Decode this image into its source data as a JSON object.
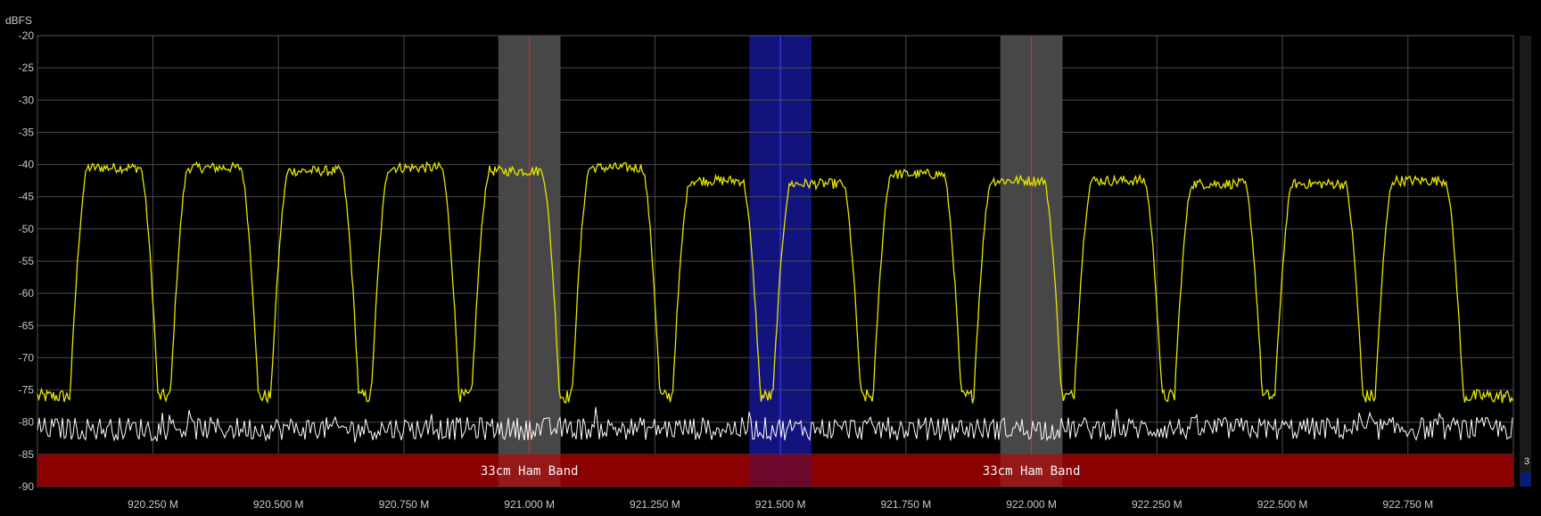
{
  "chart_data": {
    "type": "line",
    "y_unit": "dBFS",
    "ylim": [
      -90,
      -20
    ],
    "xlim": [
      920.02,
      922.96
    ],
    "y_ticks": [
      -20,
      -25,
      -30,
      -35,
      -40,
      -45,
      -50,
      -55,
      -60,
      -65,
      -70,
      -75,
      -80,
      -85,
      -90
    ],
    "x_ticks": [
      {
        "value": 920.25,
        "label": "920.250 M"
      },
      {
        "value": 920.5,
        "label": "920.500 M"
      },
      {
        "value": 920.75,
        "label": "920.750 M"
      },
      {
        "value": 921.0,
        "label": "921.000 M"
      },
      {
        "value": 921.25,
        "label": "921.250 M"
      },
      {
        "value": 921.5,
        "label": "921.500 M"
      },
      {
        "value": 921.75,
        "label": "921.750 M"
      },
      {
        "value": 922.0,
        "label": "922.000 M"
      },
      {
        "value": 922.25,
        "label": "922.250 M"
      },
      {
        "value": 922.5,
        "label": "922.500 M"
      },
      {
        "value": 922.75,
        "label": "922.750 M"
      }
    ],
    "grid": true,
    "series": [
      {
        "color": "#e6e600",
        "floor_db": -76,
        "channels": [
          {
            "start": 920.12,
            "end": 920.225,
            "level": -40.5
          },
          {
            "start": 920.32,
            "end": 920.425,
            "level": -40.5
          },
          {
            "start": 920.52,
            "end": 920.625,
            "level": -41.0
          },
          {
            "start": 920.72,
            "end": 920.825,
            "level": -40.5
          },
          {
            "start": 920.92,
            "end": 921.025,
            "level": -41.0
          },
          {
            "start": 921.12,
            "end": 921.225,
            "level": -40.5
          },
          {
            "start": 921.32,
            "end": 921.425,
            "level": -42.5
          },
          {
            "start": 921.52,
            "end": 921.625,
            "level": -43.0
          },
          {
            "start": 921.72,
            "end": 921.825,
            "level": -41.5
          },
          {
            "start": 921.92,
            "end": 922.025,
            "level": -42.5
          },
          {
            "start": 922.12,
            "end": 922.225,
            "level": -42.5
          },
          {
            "start": 922.32,
            "end": 922.425,
            "level": -43.0
          },
          {
            "start": 922.52,
            "end": 922.625,
            "level": -43.0
          },
          {
            "start": 922.72,
            "end": 922.825,
            "level": -42.5
          }
        ]
      },
      {
        "color": "#ffffff",
        "noise_floor_db": -81
      }
    ],
    "highlight_regions": [
      {
        "start": 920.938,
        "end": 921.062,
        "color": "#ffffff",
        "opacity": 0.28,
        "center": 921.0,
        "center_color": "#ff2020"
      },
      {
        "start": 921.438,
        "end": 921.562,
        "color": "#1a1aa8",
        "opacity": 0.75,
        "center": 921.5,
        "center_color": "#3a3aff"
      },
      {
        "start": 921.938,
        "end": 922.062,
        "color": "#ffffff",
        "opacity": 0.28,
        "center": 922.0,
        "center_color": "#ff2020"
      }
    ],
    "bands": [
      {
        "start": 920.02,
        "end": 921.5,
        "label": "33cm Ham Band",
        "label_at": 921.0,
        "color": "#8b0000"
      },
      {
        "start": 921.5,
        "end": 922.96,
        "label": "33cm Ham Band",
        "label_at": 922.0,
        "color": "#8b0000"
      }
    ],
    "band_ylim": [
      -90,
      -85
    ]
  },
  "side_panel": {
    "count_label": "3",
    "indicator_color": "#0a1a80"
  }
}
